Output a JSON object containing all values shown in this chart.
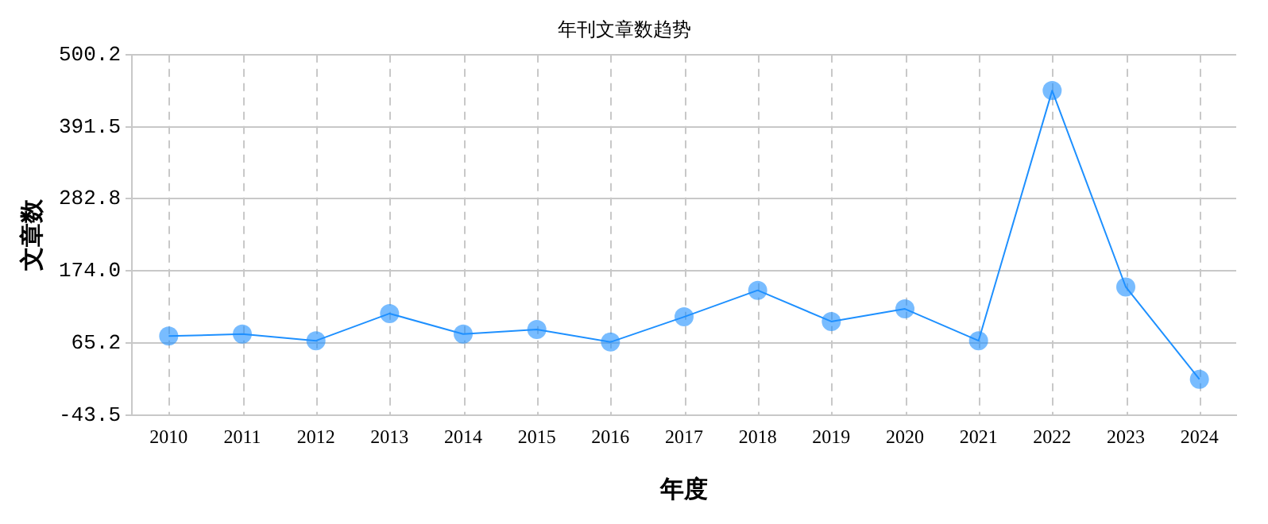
{
  "chart_data": {
    "type": "line",
    "title": "年刊文章数趋势",
    "xlabel": "年度",
    "ylabel": "文章数",
    "categories": [
      "2010",
      "2011",
      "2012",
      "2013",
      "2014",
      "2015",
      "2016",
      "2017",
      "2018",
      "2019",
      "2020",
      "2021",
      "2022",
      "2023",
      "2024"
    ],
    "series": [
      {
        "color": "#1e90ff",
        "values": [
          76,
          79,
          69,
          110,
          79,
          86,
          67,
          105,
          145,
          98,
          117,
          69,
          446,
          150,
          11
        ]
      }
    ],
    "ylim": [
      -43.5,
      500.2
    ],
    "yticks": [
      -43.5,
      65.2,
      {
        "value": 174,
        "label": "174.0"
      },
      282.8,
      391.5,
      500.2
    ],
    "grid": true,
    "marker": "circle",
    "line_style": "solid",
    "legend": false
  }
}
